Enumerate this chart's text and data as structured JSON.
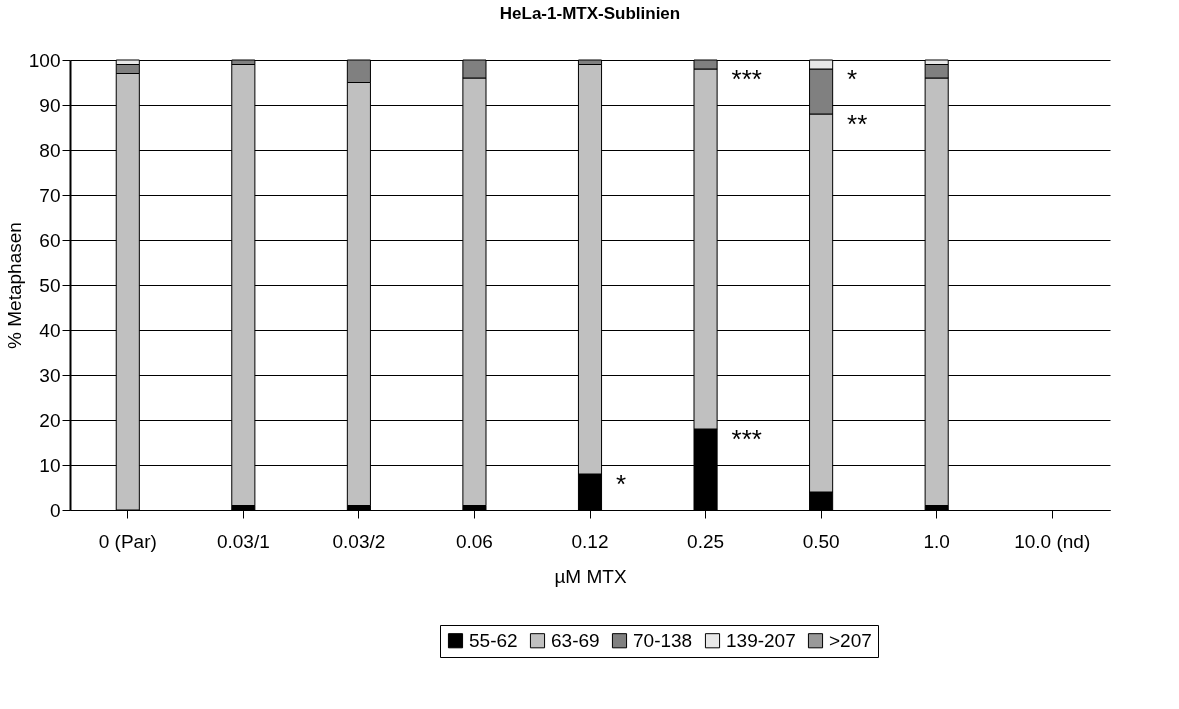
{
  "chart_data": {
    "type": "bar",
    "title": "HeLa-1-MTX-Sublinien",
    "xlabel": "µM MTX",
    "ylabel": "% Metaphasen",
    "categories": [
      "0 (Par)",
      "0.03/1",
      "0.03/2",
      "0.06",
      "0.12",
      "0.25",
      "0.50",
      "1.0",
      "10.0 (nd)"
    ],
    "stacked": true,
    "series": [
      {
        "name": "55-62",
        "color": "#000000",
        "values": [
          0,
          1,
          1,
          1,
          8,
          18,
          4,
          1,
          null
        ]
      },
      {
        "name": "63-69",
        "color": "#c0c0c0",
        "values": [
          97,
          98,
          94,
          95,
          91,
          80,
          84,
          95,
          null
        ]
      },
      {
        "name": "70-138",
        "color": "#808080",
        "values": [
          2,
          1,
          5,
          4,
          1,
          2,
          10,
          3,
          null
        ]
      },
      {
        "name": "139-207",
        "color": "#e8e8e8",
        "values": [
          1,
          0,
          0,
          0,
          0,
          0,
          2,
          1,
          null
        ]
      },
      {
        "name": ">207",
        "color": "#999999",
        "values": [
          0,
          0,
          0,
          0,
          0,
          0,
          0,
          0,
          null
        ]
      }
    ],
    "ylim": [
      0,
      100
    ],
    "yticks": [
      0,
      10,
      20,
      30,
      40,
      50,
      60,
      70,
      80,
      90,
      100
    ],
    "grid": "y",
    "legend": "bottom",
    "annotations": [
      {
        "text": "*",
        "x": "0.12",
        "y": 8
      },
      {
        "text": "***",
        "x": "0.25",
        "y": 18
      },
      {
        "text": "***",
        "x": "0.25",
        "y": 98
      },
      {
        "text": "**",
        "x": "0.50",
        "y": 88
      },
      {
        "text": "*",
        "x": "0.50",
        "y": 98
      }
    ]
  }
}
